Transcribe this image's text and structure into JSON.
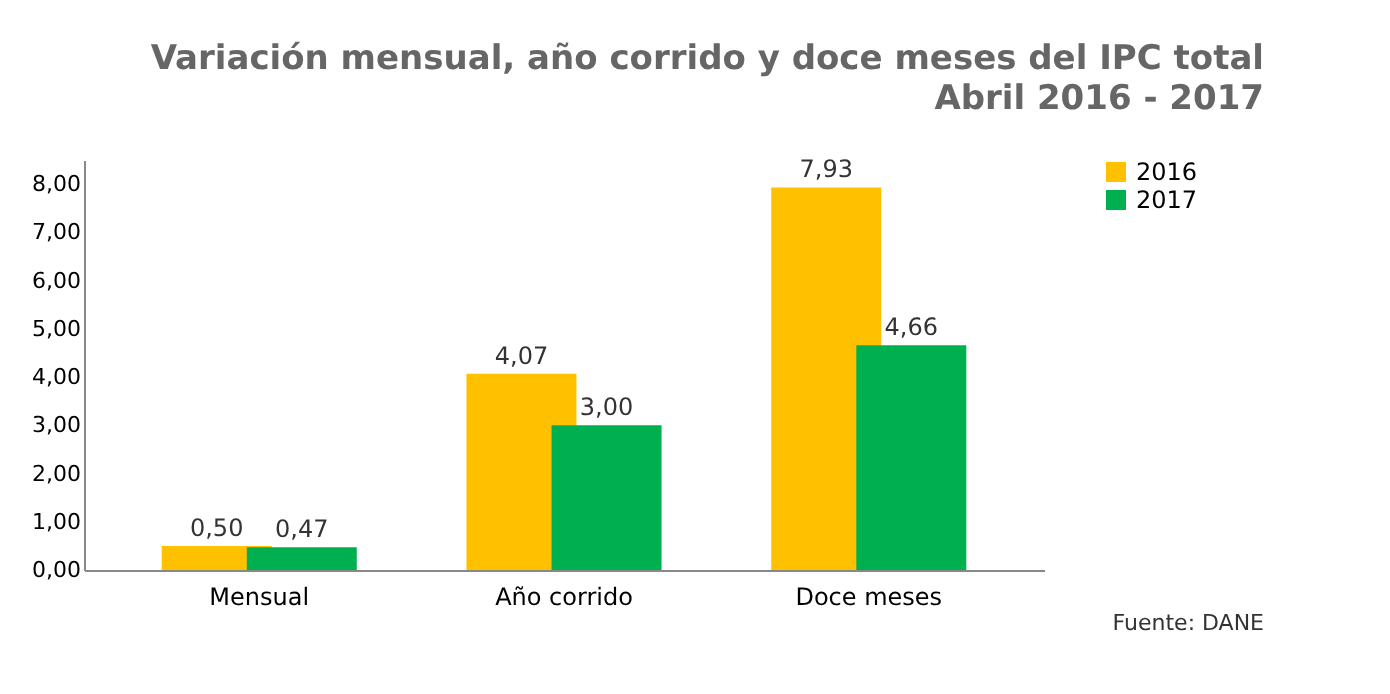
{
  "chart_data": {
    "type": "bar",
    "title": "Variación mensual, año corrido y doce meses del IPC total",
    "subtitle": "Abril 2016 - 2017",
    "categories": [
      "Mensual",
      "Año corrido",
      "Doce meses"
    ],
    "series": [
      {
        "name": "2016",
        "color": "#ffc000",
        "values": [
          0.5,
          4.07,
          7.93
        ],
        "value_labels": [
          "0,50",
          "4,07",
          "7,93"
        ]
      },
      {
        "name": "2017",
        "color": "#00b050",
        "values": [
          0.47,
          3.0,
          4.66
        ],
        "value_labels": [
          "0,47",
          "3,00",
          "4,66"
        ]
      }
    ],
    "ylim": [
      0,
      8.5
    ],
    "yticks": [
      {
        "value": 0,
        "label": "0,00"
      },
      {
        "value": 1,
        "label": "1,00"
      },
      {
        "value": 2,
        "label": "2,00"
      },
      {
        "value": 3,
        "label": "3,00"
      },
      {
        "value": 4,
        "label": "4,00"
      },
      {
        "value": 5,
        "label": "5,00"
      },
      {
        "value": 6,
        "label": "6,00"
      },
      {
        "value": 7,
        "label": "7,00"
      },
      {
        "value": 8,
        "label": "8,00"
      }
    ],
    "grid": false,
    "legend": "right",
    "annotations": [
      "Fuente: DANE"
    ]
  }
}
